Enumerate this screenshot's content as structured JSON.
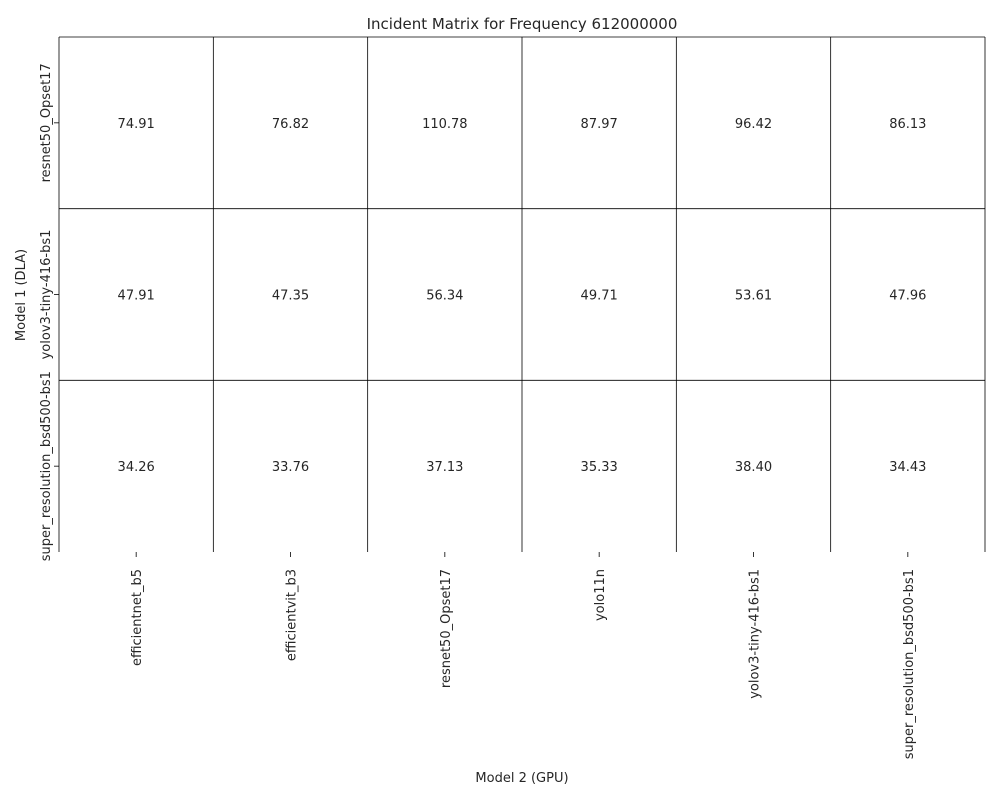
{
  "chart_data": {
    "type": "heatmap",
    "title": "Incident Matrix for Frequency 612000000",
    "xlabel": "Model 2 (GPU)",
    "ylabel": "Model 1 (DLA)",
    "x_categories": [
      "efficientnet_b5",
      "efficientvit_b3",
      "resnet50_Opset17",
      "yolo11n",
      "yolov3-tiny-416-bs1",
      "super_resolution_bsd500-bs1"
    ],
    "y_categories": [
      "resnet50_Opset17",
      "yolov3-tiny-416-bs1",
      "super_resolution_bsd500-bs1"
    ],
    "values": [
      [
        "74.91",
        "76.82",
        "110.78",
        "87.97",
        "96.42",
        "86.13"
      ],
      [
        "47.91",
        "47.35",
        "56.34",
        "49.71",
        "53.61",
        "47.96"
      ],
      [
        "34.26",
        "33.76",
        "37.13",
        "35.33",
        "38.40",
        "34.43"
      ]
    ],
    "cell_color": "#ffffff",
    "grid_color": "#000000",
    "grid": true,
    "legend": "none"
  }
}
